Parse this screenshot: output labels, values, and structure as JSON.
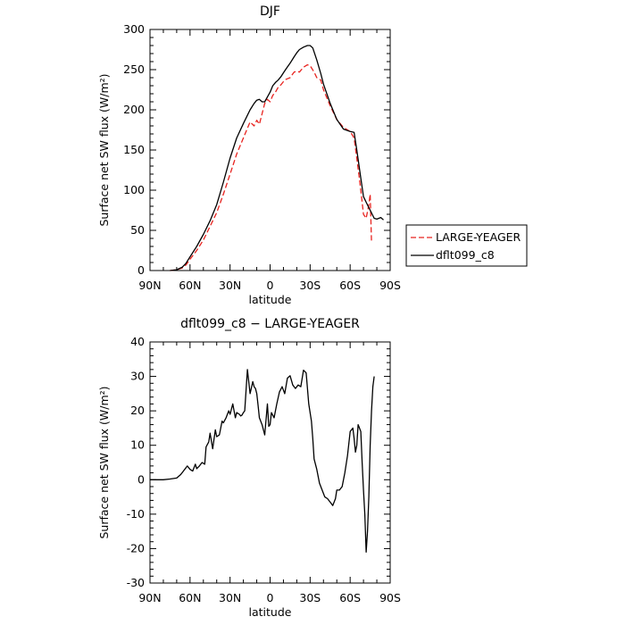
{
  "chart_data": [
    {
      "type": "line",
      "title": "DJF",
      "xlabel": "latitude",
      "ylabel": "Surface net SW flux (W/m²)",
      "xlim": [
        90,
        -90
      ],
      "ylim": [
        0,
        300
      ],
      "x_ticks": [
        {
          "value": 90,
          "label": "90N"
        },
        {
          "value": 60,
          "label": "60N"
        },
        {
          "value": 30,
          "label": "30N"
        },
        {
          "value": 0,
          "label": "0"
        },
        {
          "value": -30,
          "label": "30S"
        },
        {
          "value": -60,
          "label": "60S"
        },
        {
          "value": -90,
          "label": "90S"
        }
      ],
      "y_ticks": [
        0,
        50,
        100,
        150,
        200,
        250,
        300
      ],
      "legend_position": "right",
      "series": [
        {
          "name": "LARGE-YEAGER",
          "color": "#e8231f",
          "dash": "dashed",
          "x": [
            75,
            70,
            66,
            63,
            60,
            55,
            50,
            45,
            40,
            35,
            30,
            25,
            20,
            15,
            12,
            10,
            8,
            6,
            4,
            2,
            0,
            -2,
            -4,
            -6,
            -8,
            -10,
            -12,
            -15,
            -18,
            -20,
            -22,
            -25,
            -28,
            -30,
            -33,
            -35,
            -38,
            -40,
            -45,
            -50,
            -55,
            -60,
            -63,
            -65,
            -68,
            -70,
            -72,
            -74,
            -75,
            -76
          ],
          "values": [
            0,
            1,
            3,
            7,
            14,
            25,
            38,
            55,
            72,
            95,
            120,
            145,
            165,
            185,
            180,
            187,
            182,
            195,
            208,
            213,
            210,
            218,
            222,
            228,
            231,
            235,
            238,
            240,
            247,
            248,
            247,
            253,
            256,
            255,
            247,
            240,
            237,
            225,
            205,
            188,
            178,
            173,
            165,
            140,
            100,
            70,
            65,
            82,
            95,
            35
          ]
        },
        {
          "name": "dflt099_c8",
          "color": "#000000",
          "dash": "solid",
          "x": [
            75,
            70,
            66,
            63,
            60,
            55,
            50,
            45,
            40,
            35,
            30,
            25,
            20,
            15,
            12,
            10,
            8,
            6,
            4,
            2,
            0,
            -2,
            -4,
            -6,
            -8,
            -10,
            -12,
            -15,
            -18,
            -20,
            -22,
            -25,
            -28,
            -30,
            -32,
            -35,
            -38,
            -40,
            -45,
            -50,
            -55,
            -60,
            -63,
            -65,
            -68,
            -70,
            -72,
            -75,
            -78,
            -80,
            -83,
            -85
          ],
          "values": [
            0,
            1,
            4,
            9,
            17,
            30,
            45,
            62,
            82,
            110,
            140,
            165,
            183,
            200,
            208,
            212,
            213,
            210,
            210,
            216,
            222,
            230,
            234,
            237,
            241,
            246,
            251,
            258,
            266,
            271,
            275,
            278,
            280,
            280,
            277,
            262,
            245,
            232,
            208,
            188,
            176,
            173,
            172,
            150,
            115,
            92,
            85,
            75,
            65,
            64,
            66,
            63
          ]
        }
      ]
    },
    {
      "type": "line",
      "title": "dflt099_c8 − LARGE-YEAGER",
      "xlabel": "latitude",
      "ylabel": "Surface net SW flux (W/m²)",
      "xlim": [
        90,
        -90
      ],
      "ylim": [
        -30,
        40
      ],
      "x_ticks": [
        {
          "value": 90,
          "label": "90N"
        },
        {
          "value": 60,
          "label": "60N"
        },
        {
          "value": 30,
          "label": "30N"
        },
        {
          "value": 0,
          "label": "0"
        },
        {
          "value": -30,
          "label": "30S"
        },
        {
          "value": -60,
          "label": "60S"
        },
        {
          "value": -90,
          "label": "90S"
        }
      ],
      "y_ticks": [
        -30,
        -20,
        -10,
        0,
        10,
        20,
        30,
        40
      ],
      "series": [
        {
          "color": "#000000",
          "dash": "solid",
          "x": [
            90,
            80,
            75,
            70,
            67,
            65,
            62,
            60,
            58,
            56,
            55,
            53,
            51,
            49,
            48,
            46,
            45,
            43,
            41,
            40,
            38,
            36,
            35,
            33,
            31,
            30,
            28,
            26,
            25,
            23,
            22,
            21,
            20,
            19,
            17,
            15,
            13,
            12,
            11,
            10,
            9,
            8,
            6,
            4,
            2,
            1,
            0,
            -1,
            -3,
            -5,
            -7,
            -9,
            -11,
            -13,
            -15,
            -17,
            -19,
            -21,
            -23,
            -25,
            -27,
            -29,
            -31,
            -32,
            -33,
            -35,
            -37,
            -39,
            -41,
            -43,
            -45,
            -47,
            -49,
            -50,
            -52,
            -54,
            -56,
            -58,
            -60,
            -62,
            -63,
            -64,
            -65,
            -66,
            -67,
            -68,
            -69,
            -70,
            -71,
            -72,
            -73,
            -74,
            -75,
            -76,
            -77,
            -78
          ],
          "values": [
            0,
            0,
            0.2,
            0.5,
            1.5,
            2.5,
            4,
            3,
            2.5,
            4.5,
            3.2,
            4,
            5,
            4.5,
            9.5,
            11,
            13.5,
            9,
            14.5,
            12.5,
            13,
            17,
            16.5,
            18,
            20,
            19,
            22,
            18,
            19.5,
            19,
            18.5,
            18.8,
            19.5,
            20,
            32,
            25,
            28.5,
            27,
            26.5,
            25,
            21.5,
            18,
            16,
            13,
            22,
            15.5,
            16,
            19.5,
            18,
            22,
            25.5,
            27,
            25,
            29.5,
            30.2,
            27.5,
            26.5,
            27.5,
            27,
            31.8,
            31,
            22,
            17,
            12,
            6,
            3,
            -1,
            -3,
            -5,
            -5.5,
            -6.5,
            -7.5,
            -5.5,
            -3,
            -3,
            -2,
            2,
            7,
            14,
            15,
            12,
            8,
            10,
            16,
            15,
            14,
            5,
            -3,
            -10,
            -21,
            -15,
            -5,
            10,
            20,
            27,
            30
          ]
        }
      ]
    }
  ]
}
